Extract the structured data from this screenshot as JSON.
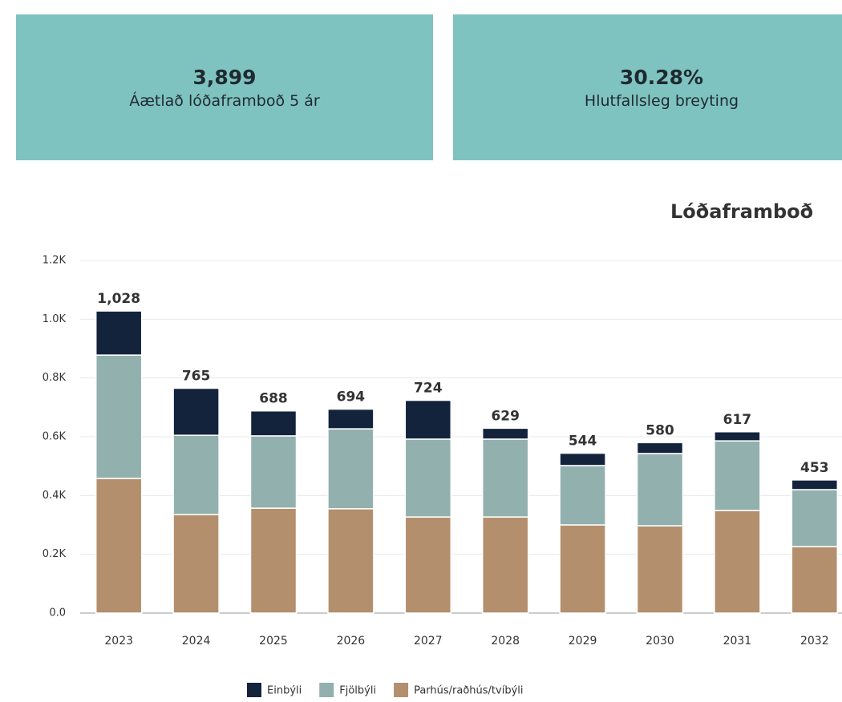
{
  "cards": [
    {
      "value": "3,899",
      "label": "Áætlað lóðaframboð 5 ár"
    },
    {
      "value": "30.28%",
      "label": "Hlutfallsleg breyting"
    }
  ],
  "chart_data": {
    "type": "stacked_bar",
    "title": "Lóðaframboð",
    "categories": [
      "2023",
      "2024",
      "2025",
      "2026",
      "2027",
      "2028",
      "2029",
      "2030",
      "2031",
      "2032"
    ],
    "series": [
      {
        "name": "Parhús/raðhús/tvíbýli",
        "color": "#b38f6e",
        "values": [
          458,
          335,
          357,
          355,
          327,
          327,
          300,
          297,
          349,
          226
        ]
      },
      {
        "name": "Fjölbýli",
        "color": "#92b0ae",
        "values": [
          420,
          270,
          246,
          272,
          265,
          265,
          202,
          246,
          237,
          194
        ]
      },
      {
        "name": "Einbýli",
        "color": "#14233c",
        "values": [
          150,
          160,
          85,
          67,
          132,
          37,
          42,
          37,
          31,
          33
        ]
      }
    ],
    "totals": [
      1028,
      765,
      688,
      694,
      724,
      629,
      544,
      580,
      617,
      453
    ],
    "total_labels": [
      "1,028",
      "765",
      "688",
      "694",
      "724",
      "629",
      "544",
      "580",
      "617",
      "453"
    ],
    "legend_order": [
      2,
      1,
      0
    ],
    "ylim": [
      0,
      1200
    ],
    "yticks": [
      {
        "value": 0,
        "label": "0.0"
      },
      {
        "value": 200,
        "label": "0.2K"
      },
      {
        "value": 400,
        "label": "0.4K"
      },
      {
        "value": 600,
        "label": "0.6K"
      },
      {
        "value": 800,
        "label": "0.8K"
      },
      {
        "value": 1000,
        "label": "1.0K"
      },
      {
        "value": 1200,
        "label": "1.2K"
      }
    ],
    "grid": true
  }
}
